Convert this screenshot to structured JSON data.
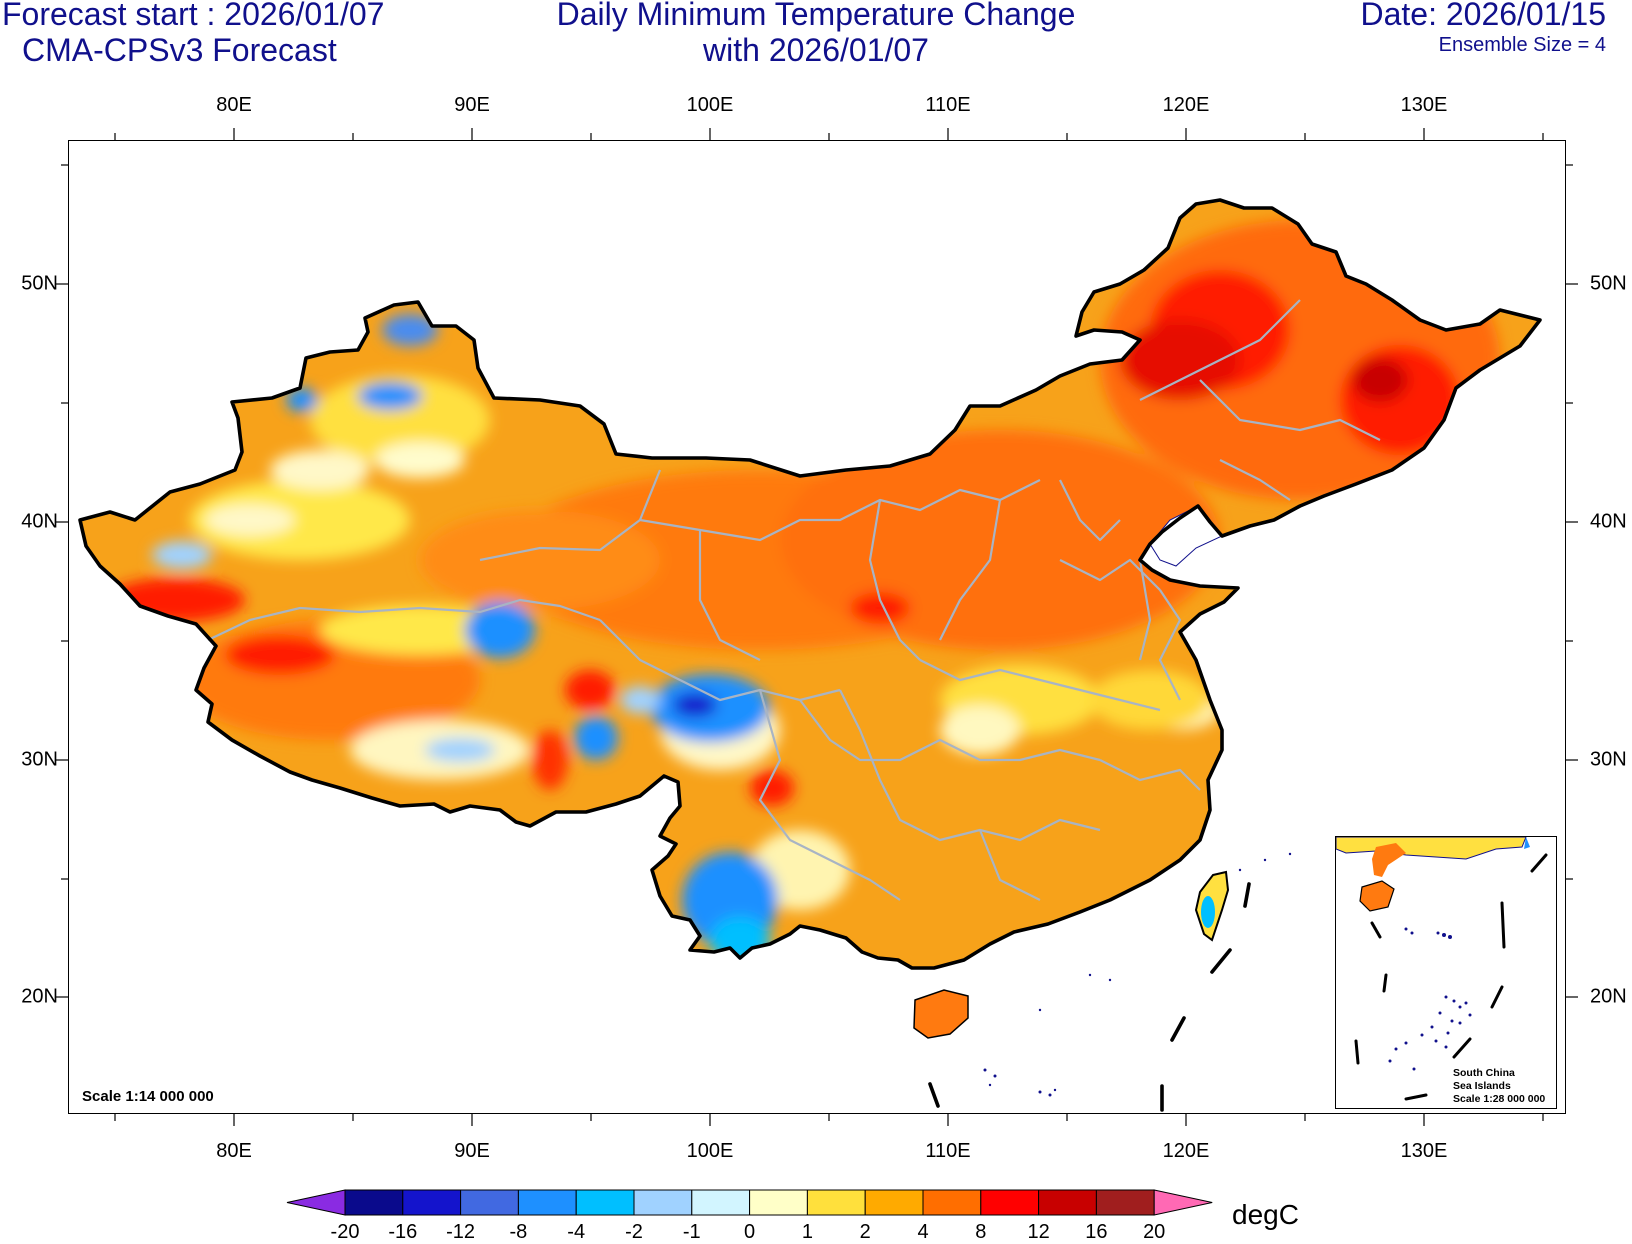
{
  "header": {
    "forecast_start": "Forecast start : 2026/01/07",
    "model": "CMA-CPSv3 Forecast",
    "title_line1": "Daily Minimum Temperature Change",
    "title_line2": "with 2026/01/07",
    "date": "Date: 2026/01/15",
    "ensemble": "Ensemble Size = 4"
  },
  "map": {
    "lon_labels": [
      "80E",
      "90E",
      "100E",
      "110E",
      "120E",
      "130E"
    ],
    "lat_labels": [
      "50N",
      "40N",
      "30N",
      "20N"
    ],
    "scale_text": "Scale 1:14 000 000",
    "inset": {
      "line1": "South China",
      "line2": "Sea Islands",
      "line3": "Scale 1:28 000 000"
    }
  },
  "colorbar": {
    "labels": [
      "-20",
      "-16",
      "-12",
      "-8",
      "-4",
      "-2",
      "-1",
      "0",
      "1",
      "2",
      "4",
      "8",
      "12",
      "16",
      "20"
    ],
    "colors": [
      "#0a0a8c",
      "#1414cc",
      "#4169e1",
      "#1e90ff",
      "#00bfff",
      "#a0d2ff",
      "#d2f5ff",
      "#ffffc8",
      "#ffe03c",
      "#ffaa00",
      "#ff6e00",
      "#ff0000",
      "#c80000",
      "#a01e1e"
    ],
    "under_color": "#8a2be2",
    "over_color": "#ff69b4",
    "unit": "degC"
  },
  "colors": {
    "title": "#10108c",
    "china_fill": "#f7a21a",
    "warm": "#ff6e00",
    "hot": "#ff1a00",
    "cold": "#1e90ff"
  }
}
